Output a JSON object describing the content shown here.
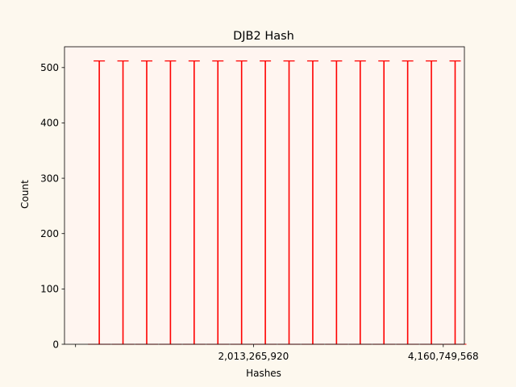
{
  "chart_data": {
    "type": "bar",
    "title": "DJB2 Hash",
    "xlabel": "Hashes",
    "ylabel": "Count",
    "bar_color": "#ff0000",
    "plot_background": "#fff5f0",
    "page_background": "#fdf8ee",
    "xlim": [
      -125000000,
      4400000000
    ],
    "ylim": [
      0,
      537.6
    ],
    "y_ticks": [
      0,
      100,
      200,
      300,
      400,
      500
    ],
    "x_ticks": [
      0,
      2013265920,
      4160749568
    ],
    "x_tick_labels": [
      "",
      "2,013,265,920",
      "4,160,749,568"
    ],
    "x": [
      268435456,
      536870912,
      805306368,
      1073741824,
      1342177280,
      1610612736,
      1879048192,
      2147483648,
      2415919104,
      2684354560,
      2952790016,
      3221225472,
      3489660928,
      3758096384,
      4026531840,
      4294967296
    ],
    "values": [
      512,
      512,
      512,
      512,
      512,
      512,
      512,
      512,
      512,
      512,
      512,
      512,
      512,
      512,
      512,
      512
    ]
  }
}
